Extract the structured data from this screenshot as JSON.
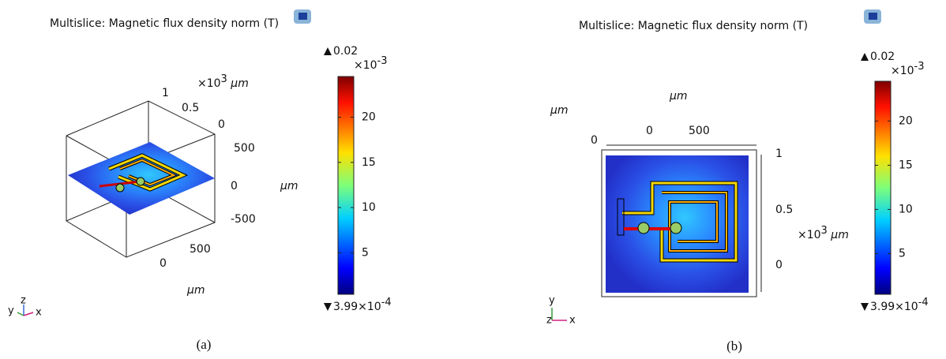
{
  "panels": [
    {
      "caption": "(a)",
      "title": "Multislice: Magnetic flux density norm (T)",
      "tick_labels": [
        "1",
        "0.5",
        "0",
        "500",
        "0",
        "-500",
        "500",
        "0"
      ],
      "exponent_label": {
        "base": "×10",
        "power": "3",
        "unit": "μm"
      },
      "unit_labels": [
        "μm",
        "μm"
      ],
      "triad": [
        "y",
        "z",
        "x"
      ],
      "colorbar": {
        "max_label": "0.02",
        "scale_base": "×10",
        "scale_power": "-3",
        "ticks": [
          5,
          10,
          15,
          20
        ],
        "lim": [
          0.399,
          24.5
        ],
        "min_base": "3.99×10",
        "min_power": "-4"
      }
    },
    {
      "caption": "(b)",
      "title": "Multislice: Magnetic flux density norm (T)",
      "tick_labels": [
        "0",
        "0",
        "500",
        "1",
        "0.5",
        "0"
      ],
      "exponent_label": {
        "base": "×10",
        "power": "3",
        "unit": "μm"
      },
      "unit_labels": [
        "μm",
        "μm"
      ],
      "triad": [
        "y",
        "z",
        "x"
      ],
      "colorbar": {
        "max_label": "0.02",
        "scale_base": "×10",
        "scale_power": "-3",
        "ticks": [
          5,
          10,
          15,
          20
        ],
        "lim": [
          0.399,
          24.5
        ],
        "min_base": "3.99×10",
        "min_power": "-4"
      }
    }
  ]
}
